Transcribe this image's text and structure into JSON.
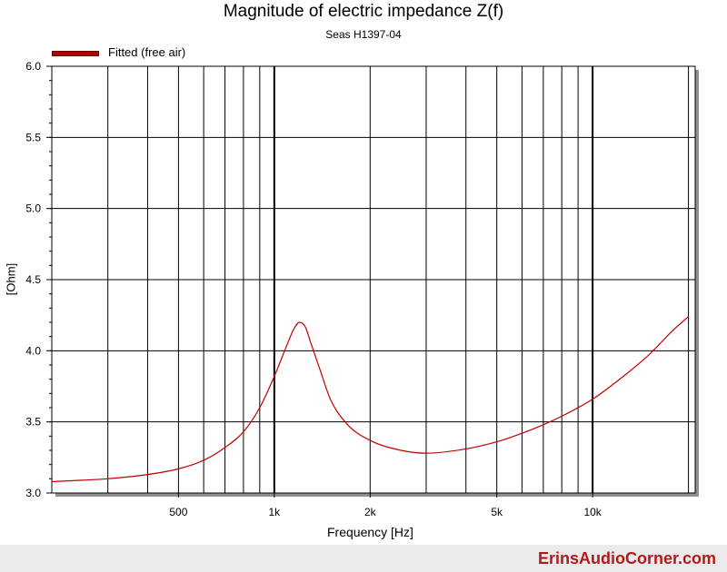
{
  "chart_data": {
    "type": "line",
    "title": "Magnitude of electric impedance Z(f)",
    "subtitle": "Seas H1397-04",
    "xlabel": "Frequency [Hz]",
    "ylabel": "[Ohm]",
    "x_scale": "log",
    "xlim": [
      200,
      21000
    ],
    "ylim": [
      3.0,
      6.0
    ],
    "x_tick_labels": [
      {
        "value": 500,
        "label": "500"
      },
      {
        "value": 1000,
        "label": "1k"
      },
      {
        "value": 2000,
        "label": "2k"
      },
      {
        "value": 5000,
        "label": "5k"
      },
      {
        "value": 10000,
        "label": "10k"
      }
    ],
    "y_tick_labels": [
      {
        "value": 3.0,
        "label": "3.0"
      },
      {
        "value": 3.5,
        "label": "3.5"
      },
      {
        "value": 4.0,
        "label": "4.0"
      },
      {
        "value": 4.5,
        "label": "4.5"
      },
      {
        "value": 5.0,
        "label": "5.0"
      },
      {
        "value": 5.5,
        "label": "5.5"
      },
      {
        "value": 6.0,
        "label": "6.0"
      }
    ],
    "grid": true,
    "legend_position": "top-left",
    "series": [
      {
        "name": "Fitted (free air)",
        "color": "#c00000",
        "x": [
          200,
          250,
          300,
          400,
          500,
          600,
          700,
          800,
          900,
          1000,
          1100,
          1150,
          1200,
          1250,
          1300,
          1400,
          1500,
          1700,
          2000,
          2500,
          3000,
          4000,
          5000,
          6000,
          7000,
          8000,
          10000,
          12000,
          15000,
          18000,
          20000
        ],
        "y": [
          3.08,
          3.09,
          3.1,
          3.13,
          3.17,
          3.23,
          3.32,
          3.43,
          3.6,
          3.82,
          4.05,
          4.15,
          4.2,
          4.17,
          4.06,
          3.85,
          3.66,
          3.48,
          3.37,
          3.3,
          3.28,
          3.31,
          3.36,
          3.42,
          3.48,
          3.54,
          3.66,
          3.79,
          3.97,
          4.15,
          4.24
        ]
      }
    ]
  },
  "footer": {
    "brand": "ErinsAudioCorner.com"
  }
}
